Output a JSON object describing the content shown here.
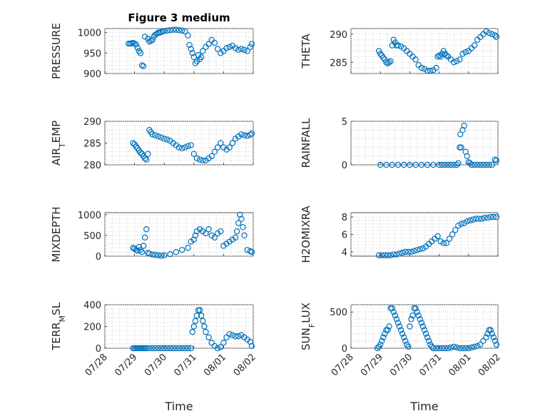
{
  "title": "Figure 3 medium",
  "x_axis_label": "Time",
  "colors": {
    "marker": "#0072BD",
    "axis": "#262626",
    "grid": "#c8c8c8"
  },
  "x_tick_labels": [
    "07/28",
    "07/29",
    "07/30",
    "07/31",
    "08/01",
    "08/02"
  ],
  "chart_data": [
    {
      "type": "scatter",
      "ylabel": "PRESSURE",
      "ylim": [
        900,
        1010
      ],
      "yticks": [
        900,
        950,
        1000
      ],
      "xlim": [
        "07/28",
        "08/02"
      ],
      "grid": true,
      "x_days": [
        0.8,
        0.85,
        0.9,
        0.95,
        1.0,
        1.05,
        1.1,
        1.15,
        1.2,
        1.25,
        1.3,
        1.35,
        1.45,
        1.5,
        1.55,
        1.6,
        1.65,
        1.7,
        1.75,
        1.8,
        1.85,
        1.9,
        1.95,
        2.0,
        2.1,
        2.2,
        2.3,
        2.4,
        2.5,
        2.6,
        2.7,
        2.8,
        2.85,
        2.9,
        2.95,
        3.0,
        3.05,
        3.1,
        3.15,
        3.2,
        3.25,
        3.3,
        3.4,
        3.5,
        3.6,
        3.7,
        3.8,
        3.9,
        4.0,
        4.1,
        4.2,
        4.3,
        4.4,
        4.5,
        4.6,
        4.7,
        4.8,
        4.9,
        4.95
      ],
      "values": [
        973,
        973,
        974,
        975,
        973,
        971,
        963,
        955,
        950,
        920,
        918,
        990,
        985,
        978,
        980,
        982,
        990,
        995,
        997,
        1000,
        1000,
        1002,
        1003,
        1004,
        1005,
        1006,
        1007,
        1007,
        1006,
        1005,
        1003,
        993,
        970,
        960,
        950,
        940,
        925,
        930,
        945,
        935,
        940,
        955,
        965,
        972,
        982,
        975,
        960,
        950,
        955,
        962,
        965,
        968,
        962,
        958,
        960,
        958,
        955,
        965,
        972
      ]
    },
    {
      "type": "scatter",
      "ylabel": "THETA",
      "ylim": [
        283,
        291
      ],
      "yticks": [
        285,
        290
      ],
      "xlim": [
        "07/28",
        "08/02"
      ],
      "grid": true,
      "x_days": [
        0.95,
        1.0,
        1.05,
        1.1,
        1.15,
        1.2,
        1.25,
        1.3,
        1.35,
        1.4,
        1.45,
        1.5,
        1.55,
        1.6,
        1.7,
        1.8,
        1.9,
        2.0,
        2.1,
        2.2,
        2.3,
        2.4,
        2.5,
        2.6,
        2.7,
        2.8,
        2.9,
        2.95,
        3.0,
        3.05,
        3.1,
        3.15,
        3.2,
        3.25,
        3.3,
        3.4,
        3.5,
        3.6,
        3.7,
        3.8,
        3.9,
        4.0,
        4.1,
        4.2,
        4.3,
        4.4,
        4.5,
        4.6,
        4.7,
        4.8,
        4.9,
        4.95
      ],
      "values": [
        287,
        286.5,
        286.2,
        285.8,
        285.5,
        285,
        284.8,
        285,
        285.2,
        288,
        289,
        288.5,
        288,
        288,
        287.8,
        287.5,
        287,
        286.5,
        286,
        285.5,
        284.5,
        284,
        283.8,
        283.5,
        283.5,
        283.6,
        284,
        286,
        286.2,
        286,
        286.5,
        287,
        286.5,
        286.2,
        286,
        285.5,
        285,
        285.2,
        285.5,
        286.5,
        286.8,
        287,
        287.5,
        288,
        289,
        289.5,
        290,
        290.5,
        290.2,
        290,
        289.8,
        289.5
      ]
    },
    {
      "type": "scatter",
      "ylabel": "AIR_TEMP",
      "ylim": [
        280,
        290
      ],
      "yticks": [
        280,
        285,
        290
      ],
      "xlim": [
        "07/28",
        "08/02"
      ],
      "grid": true,
      "x_days": [
        0.95,
        1.0,
        1.05,
        1.1,
        1.15,
        1.2,
        1.25,
        1.3,
        1.35,
        1.4,
        1.45,
        1.5,
        1.55,
        1.6,
        1.7,
        1.8,
        1.9,
        2.0,
        2.1,
        2.2,
        2.3,
        2.4,
        2.5,
        2.6,
        2.7,
        2.8,
        2.9,
        3.0,
        3.1,
        3.2,
        3.3,
        3.4,
        3.5,
        3.6,
        3.7,
        3.8,
        3.9,
        4.0,
        4.1,
        4.2,
        4.3,
        4.4,
        4.5,
        4.6,
        4.7,
        4.8,
        4.9,
        4.95
      ],
      "values": [
        285,
        284.7,
        284.2,
        283.8,
        283.3,
        282.8,
        282.5,
        282,
        281.5,
        281.2,
        282.5,
        288,
        287.5,
        287,
        286.8,
        286.5,
        286.3,
        286,
        285.8,
        285.5,
        285,
        284.5,
        284,
        283.8,
        284,
        284.3,
        284.5,
        282.5,
        281.5,
        281.2,
        281,
        281,
        281.5,
        282,
        283,
        284,
        285,
        284,
        283.5,
        284,
        285,
        286,
        286.5,
        287,
        286.8,
        286.7,
        286.9,
        287.2
      ]
    },
    {
      "type": "scatter",
      "ylabel": "RAINFALL",
      "ylim": [
        0,
        5
      ],
      "yticks": [
        0,
        5
      ],
      "xlim": [
        "07/28",
        "08/02"
      ],
      "grid": true,
      "x_days": [
        1.0,
        1.2,
        1.4,
        1.6,
        1.8,
        2.0,
        2.2,
        2.4,
        2.6,
        2.8,
        3.0,
        3.1,
        3.2,
        3.3,
        3.4,
        3.5,
        3.6,
        3.65,
        3.7,
        3.72,
        3.75,
        3.8,
        3.85,
        3.9,
        3.95,
        4.0,
        4.05,
        4.1,
        4.2,
        4.3,
        4.4,
        4.5,
        4.6,
        4.7,
        4.8,
        4.9,
        4.95
      ],
      "values": [
        0,
        0,
        0,
        0,
        0,
        0,
        0,
        0,
        0,
        0,
        0,
        0,
        0,
        0,
        0,
        0,
        0,
        0.2,
        2.0,
        3.5,
        2.0,
        4.0,
        4.5,
        1.5,
        1.0,
        0.3,
        0.2,
        0,
        0,
        0,
        0,
        0,
        0,
        0,
        0,
        0.6,
        0.5
      ]
    },
    {
      "type": "scatter",
      "ylabel": "MIXDEPTH",
      "ylim": [
        0,
        1050
      ],
      "yticks": [
        0,
        500,
        1000
      ],
      "xlim": [
        "07/28",
        "08/02"
      ],
      "grid": true,
      "x_days": [
        0.95,
        1.0,
        1.05,
        1.1,
        1.15,
        1.2,
        1.25,
        1.3,
        1.35,
        1.4,
        1.45,
        1.5,
        1.6,
        1.7,
        1.8,
        1.9,
        2.0,
        2.2,
        2.4,
        2.6,
        2.8,
        2.9,
        3.0,
        3.05,
        3.1,
        3.2,
        3.3,
        3.4,
        3.5,
        3.6,
        3.7,
        3.8,
        3.9,
        4.0,
        4.1,
        4.2,
        4.3,
        4.4,
        4.45,
        4.5,
        4.55,
        4.6,
        4.65,
        4.7,
        4.8,
        4.9,
        4.95
      ],
      "values": [
        200,
        180,
        150,
        130,
        220,
        150,
        100,
        250,
        450,
        650,
        80,
        60,
        40,
        30,
        20,
        10,
        20,
        50,
        100,
        150,
        200,
        350,
        400,
        500,
        600,
        650,
        600,
        550,
        650,
        500,
        450,
        550,
        600,
        250,
        300,
        350,
        400,
        450,
        600,
        800,
        1000,
        900,
        700,
        500,
        150,
        120,
        100
      ]
    },
    {
      "type": "scatter",
      "ylabel": "H2OMIXRA",
      "ylim": [
        3.5,
        8.5
      ],
      "yticks": [
        4,
        6,
        8
      ],
      "xlim": [
        "07/28",
        "08/02"
      ],
      "grid": true,
      "x_days": [
        0.95,
        1.05,
        1.15,
        1.25,
        1.35,
        1.45,
        1.55,
        1.65,
        1.75,
        1.85,
        1.95,
        2.05,
        2.15,
        2.25,
        2.35,
        2.45,
        2.55,
        2.65,
        2.75,
        2.85,
        2.95,
        3.05,
        3.15,
        3.25,
        3.35,
        3.45,
        3.55,
        3.65,
        3.75,
        3.85,
        3.95,
        4.05,
        4.15,
        4.25,
        4.35,
        4.45,
        4.55,
        4.65,
        4.75,
        4.85,
        4.95
      ],
      "values": [
        3.6,
        3.6,
        3.6,
        3.6,
        3.6,
        3.7,
        3.7,
        3.8,
        3.9,
        4.0,
        4.0,
        4.0,
        4.1,
        4.2,
        4.3,
        4.4,
        4.6,
        4.9,
        5.2,
        5.5,
        5.8,
        5.2,
        5.0,
        5.0,
        5.5,
        6.0,
        6.5,
        7.0,
        7.2,
        7.3,
        7.5,
        7.6,
        7.7,
        7.8,
        7.8,
        7.8,
        7.9,
        7.9,
        8.0,
        8.0,
        8.0
      ]
    },
    {
      "type": "scatter",
      "ylabel": "TERR_MSL",
      "ylim": [
        0,
        400
      ],
      "yticks": [
        0,
        200,
        400
      ],
      "xlim": [
        "07/28",
        "08/02"
      ],
      "grid": true,
      "x_days": [
        0.95,
        1.0,
        1.05,
        1.1,
        1.15,
        1.2,
        1.25,
        1.3,
        1.35,
        1.4,
        1.5,
        1.6,
        1.7,
        1.8,
        1.9,
        2.0,
        2.1,
        2.2,
        2.3,
        2.4,
        2.5,
        2.6,
        2.7,
        2.8,
        2.9,
        2.95,
        3.0,
        3.05,
        3.1,
        3.15,
        3.2,
        3.25,
        3.3,
        3.35,
        3.4,
        3.5,
        3.6,
        3.7,
        3.8,
        3.9,
        4.0,
        4.1,
        4.2,
        4.3,
        4.4,
        4.5,
        4.6,
        4.7,
        4.8,
        4.9,
        4.95
      ],
      "values": [
        0,
        0,
        0,
        0,
        0,
        0,
        0,
        0,
        0,
        0,
        0,
        0,
        0,
        0,
        0,
        0,
        0,
        0,
        0,
        0,
        0,
        0,
        0,
        0,
        0,
        150,
        200,
        250,
        300,
        350,
        350,
        300,
        250,
        200,
        150,
        100,
        50,
        20,
        0,
        10,
        50,
        100,
        130,
        120,
        110,
        110,
        120,
        100,
        80,
        60,
        20
      ]
    },
    {
      "type": "scatter",
      "ylabel": "SUN_FLUX",
      "ylim": [
        0,
        600
      ],
      "yticks": [
        0,
        500
      ],
      "xlim": [
        "07/28",
        "08/02"
      ],
      "grid": true,
      "x_days": [
        0.9,
        0.95,
        1.0,
        1.05,
        1.1,
        1.15,
        1.2,
        1.25,
        1.3,
        1.35,
        1.4,
        1.45,
        1.5,
        1.55,
        1.6,
        1.65,
        1.7,
        1.75,
        1.8,
        1.85,
        1.9,
        1.95,
        2.0,
        2.05,
        2.1,
        2.15,
        2.2,
        2.25,
        2.3,
        2.35,
        2.4,
        2.45,
        2.5,
        2.55,
        2.6,
        2.65,
        2.7,
        2.75,
        2.8,
        2.9,
        3.0,
        3.1,
        3.2,
        3.3,
        3.4,
        3.5,
        3.6,
        3.7,
        3.8,
        3.9,
        4.0,
        4.1,
        4.2,
        4.3,
        4.4,
        4.5,
        4.6,
        4.65,
        4.7,
        4.75,
        4.8,
        4.85,
        4.9,
        4.95
      ],
      "values": [
        0,
        20,
        50,
        100,
        150,
        200,
        250,
        250,
        300,
        550,
        550,
        500,
        450,
        400,
        350,
        300,
        250,
        200,
        150,
        100,
        50,
        20,
        300,
        400,
        450,
        550,
        550,
        500,
        450,
        400,
        350,
        300,
        250,
        200,
        150,
        100,
        50,
        20,
        0,
        0,
        0,
        0,
        0,
        0,
        10,
        20,
        10,
        0,
        0,
        0,
        0,
        10,
        20,
        30,
        50,
        100,
        150,
        200,
        250,
        250,
        200,
        150,
        100,
        50
      ]
    }
  ]
}
